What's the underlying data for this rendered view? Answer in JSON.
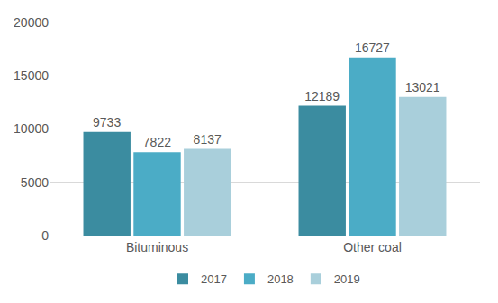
{
  "chart_data": {
    "type": "bar",
    "categories": [
      "Bituminous",
      "Other coal"
    ],
    "series": [
      {
        "name": "2017",
        "color": "#3B8CA0",
        "values": [
          9733,
          12189
        ]
      },
      {
        "name": "2018",
        "color": "#4BACC6",
        "values": [
          7822,
          16727
        ]
      },
      {
        "name": "2019",
        "color": "#A9CFDB",
        "values": [
          8137,
          13021
        ]
      }
    ],
    "ylim": [
      0,
      20000
    ],
    "yticks": [
      0,
      5000,
      10000,
      15000,
      20000
    ],
    "grid": true,
    "legend": "bottom",
    "data_labels": true
  }
}
